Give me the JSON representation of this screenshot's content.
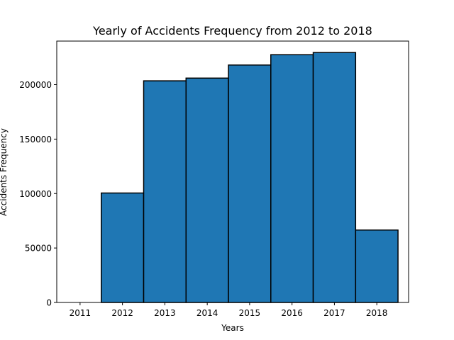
{
  "chart_data": {
    "type": "bar",
    "title": "Yearly of Accidents Frequency from 2012 to 2018",
    "xlabel": "Years",
    "ylabel": "Accidents Frequency",
    "categories": [
      "2012",
      "2013",
      "2014",
      "2015",
      "2016",
      "2017",
      "2018"
    ],
    "x_values": [
      2012,
      2013,
      2014,
      2015,
      2016,
      2017,
      2018
    ],
    "values": [
      100500,
      203500,
      206000,
      218000,
      227500,
      229500,
      66500
    ],
    "xlim": [
      2010.45,
      2018.75
    ],
    "ylim": [
      0,
      240000
    ],
    "x_ticks": [
      2011,
      2012,
      2013,
      2014,
      2015,
      2016,
      2017,
      2018
    ],
    "x_tick_labels": [
      "2011",
      "2012",
      "2013",
      "2014",
      "2015",
      "2016",
      "2017",
      "2018"
    ],
    "y_ticks": [
      0,
      50000,
      100000,
      150000,
      200000
    ],
    "y_tick_labels": [
      "0",
      "50000",
      "100000",
      "150000",
      "200000"
    ],
    "bar_width": 1.0,
    "grid": false,
    "legend": "none",
    "colors": {
      "bar_fill": "#1f77b4",
      "bar_edge": "#000000",
      "axis": "#000000",
      "background": "#ffffff"
    }
  }
}
